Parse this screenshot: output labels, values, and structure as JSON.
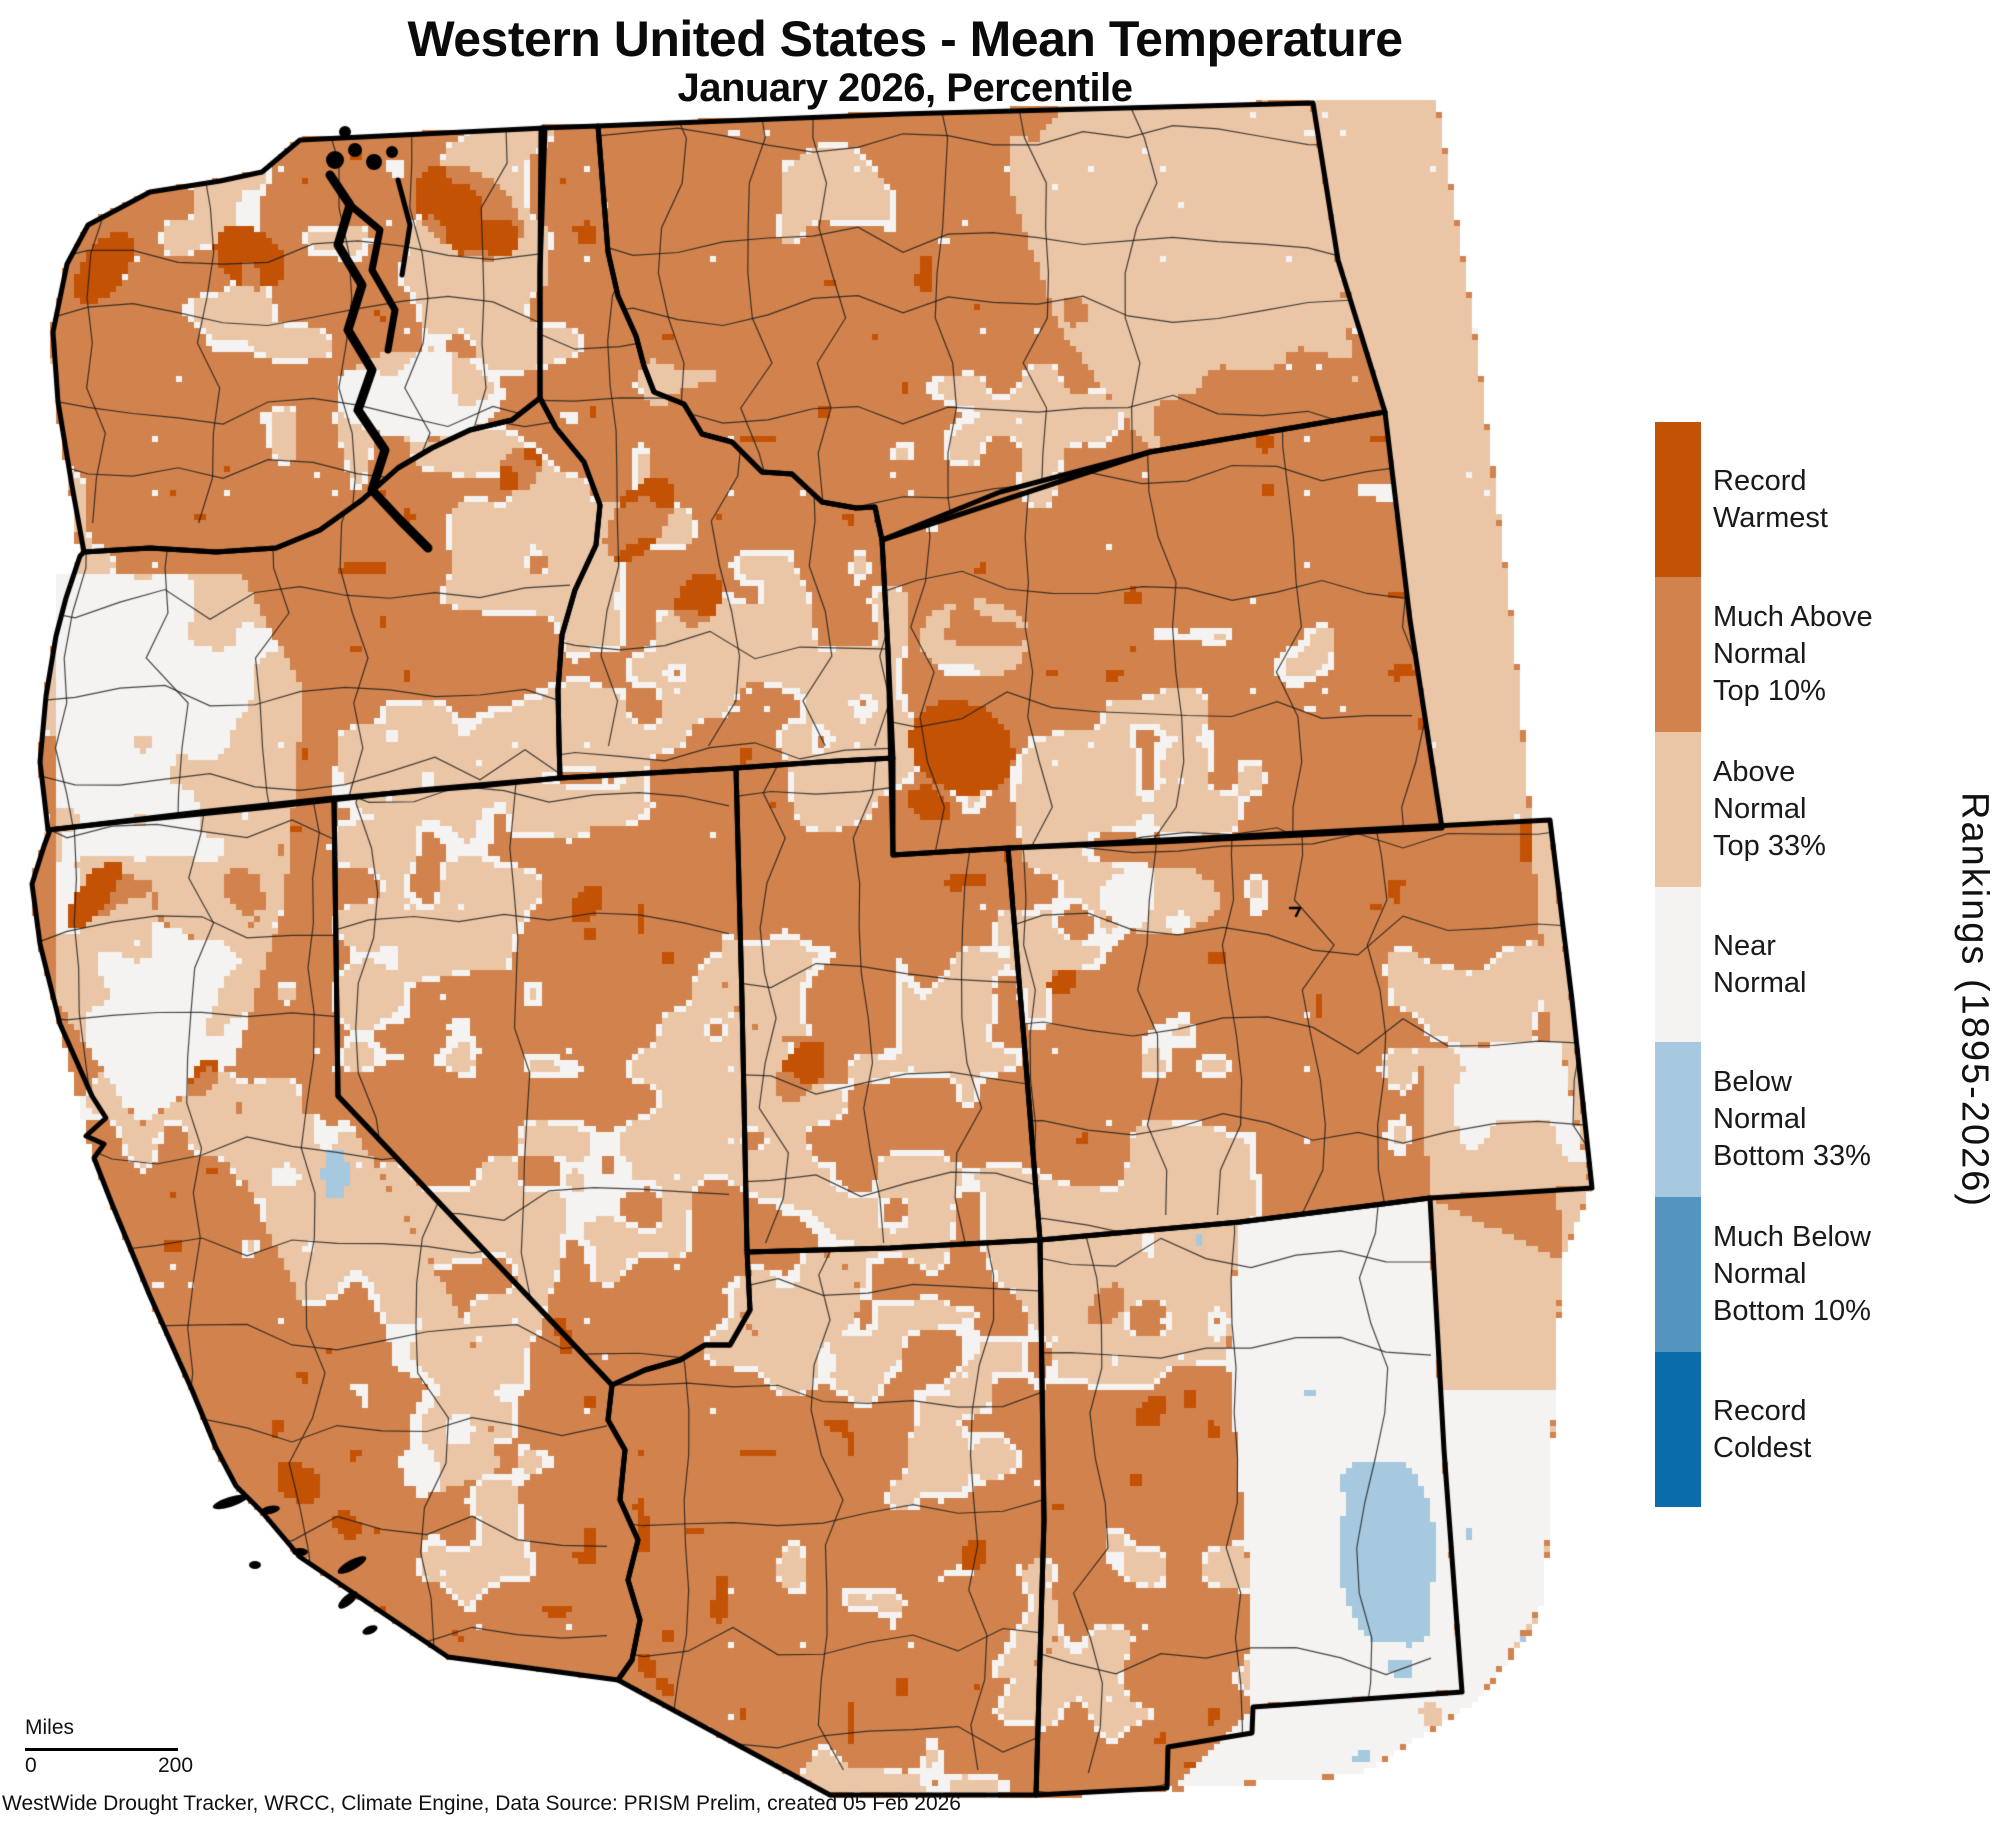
{
  "title": "Western United States - Mean Temperature",
  "subtitle": "January 2026, Percentile",
  "map": {
    "region_label": "Western United States",
    "states_shown": [
      "Washington",
      "Oregon",
      "California",
      "Nevada",
      "Idaho",
      "Montana",
      "Wyoming",
      "Utah",
      "Colorado",
      "Arizona",
      "New Mexico"
    ],
    "colors": {
      "record_warmest": "#C35205",
      "much_above_normal": "#D2834D",
      "above_normal": "#EBC6A6",
      "near_normal": "#F4F3F1",
      "below_normal": "#A6C9DF",
      "much_below_normal": "#5495C0",
      "record_coldest": "#0B6CAB",
      "border": "#000000",
      "water": "#FFFFFF"
    }
  },
  "legend": {
    "axis_label": "Rankings (1895-2026)",
    "items": [
      {
        "label": "Record\nWarmest",
        "color": "#C35205"
      },
      {
        "label": "Much Above\nNormal\nTop 10%",
        "color": "#D2834D"
      },
      {
        "label": "Above\nNormal\nTop 33%",
        "color": "#EBC6A6"
      },
      {
        "label": "Near\nNormal",
        "color": "#F4F3F1"
      },
      {
        "label": "Below\nNormal\nBottom 33%",
        "color": "#A6C9DF"
      },
      {
        "label": "Much Below\nNormal\nBottom 10%",
        "color": "#5495C0"
      },
      {
        "label": "Record\nColdest",
        "color": "#0B6CAB"
      }
    ]
  },
  "scale_bar": {
    "unit_label": "Miles",
    "min_label": "0",
    "max_label": "200"
  },
  "footer": "WestWide Drought Tracker, WRCC, Climate Engine, Data Source: PRISM Prelim, created 05 Feb 2026"
}
